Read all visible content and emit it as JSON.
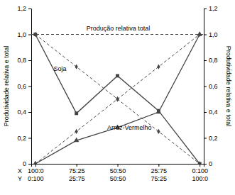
{
  "chart_data": {
    "type": "line",
    "x_label": "X",
    "categories": [
      "100:0",
      "75:25",
      "50:50",
      "25:75",
      "0:100"
    ],
    "x2_label": "Y",
    "x2_categories": [
      "0:100",
      "25:75",
      "50:50",
      "75:25",
      "100:0"
    ],
    "ylabel": "Produtividade relativa e total",
    "y2label": "Produtividade relativa e total",
    "ylim": [
      0,
      1.2
    ],
    "yticks": [
      0,
      {
        "value": 0.2,
        "label": "0,2"
      },
      {
        "value": 0.4,
        "label": "0,4"
      },
      {
        "value": 0.6,
        "label": "0,6"
      },
      {
        "value": 0.8,
        "label": "0,8"
      },
      {
        "value": 1.0,
        "label": "1,0"
      },
      {
        "value": 1.2,
        "label": "1,2"
      }
    ],
    "y2lim": [
      0,
      1.2
    ],
    "y2ticks": [
      0,
      {
        "value": 0.2,
        "label": "0,2"
      },
      {
        "value": 0.4,
        "label": "0,4"
      },
      {
        "value": 0.6,
        "label": "0,6"
      },
      {
        "value": 0.8,
        "label": "0,8"
      },
      {
        "value": 1.0,
        "label": "1,0"
      },
      {
        "value": 1.2,
        "label": "1,2"
      }
    ],
    "grid": false,
    "reference_line": {
      "y": 1.0,
      "label": "Produção relativa total",
      "color": "#444444",
      "line_style": "dashed"
    },
    "series": [
      {
        "values": [
          1.0,
          0.75,
          0.5,
          0.25,
          0.0
        ],
        "color": "#444444",
        "line_style": "dashed",
        "marker": "diamond"
      },
      {
        "values": [
          0.0,
          0.25,
          0.5,
          0.75,
          1.0
        ],
        "color": "#444444",
        "line_style": "dashed",
        "marker": "diamond"
      },
      {
        "name": "Soja",
        "values": [
          1.0,
          0.39,
          0.68,
          0.41,
          0.0
        ],
        "color": "#444444",
        "line_style": "solid",
        "marker": "square"
      },
      {
        "name": "Arroz-Vermelho",
        "values": [
          0.0,
          0.18,
          0.28,
          0.4,
          1.0
        ],
        "color": "#444444",
        "line_style": "solid",
        "marker": "triangle"
      }
    ]
  }
}
